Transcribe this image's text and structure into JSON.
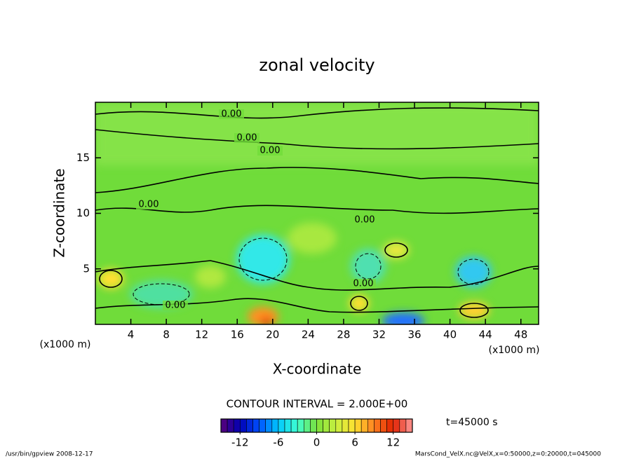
{
  "chart_data": {
    "type": "contour",
    "title": "zonal velocity",
    "x_label": "X-coordinate",
    "y_label": "Z-coordinate",
    "x_unit": "(x1000 m)",
    "xlim": [
      0,
      50
    ],
    "xticks": [
      4,
      8,
      12,
      16,
      20,
      24,
      28,
      32,
      36,
      40,
      44,
      48
    ],
    "ylim": [
      0,
      20
    ],
    "yticks": [
      5,
      10,
      15
    ],
    "contour_labels": [
      "0.00",
      "0.00",
      "0.00",
      "0.00",
      "0.00",
      "0.00",
      "0.00"
    ],
    "contour_interval": "CONTOUR INTERVAL = 2.000E+00",
    "time_label": "t=45000 s",
    "colorbar": {
      "lim": [
        -15,
        15
      ],
      "step": 1,
      "ticks": [
        -12,
        -6,
        0,
        6,
        12
      ],
      "colors": [
        "#5a0078",
        "#0000b4",
        "#0050ff",
        "#00c8ff",
        "#40ffd0",
        "#7ae03a",
        "#c8f040",
        "#ffe030",
        "#ff8020",
        "#e02000",
        "#ff9a9a"
      ]
    },
    "footer_left": "/usr/bin/gpview   2008-12-17",
    "footer_right": "MarsCond_VelX.nc@VelX,x=0:50000,z=0:20000,t=045000"
  }
}
